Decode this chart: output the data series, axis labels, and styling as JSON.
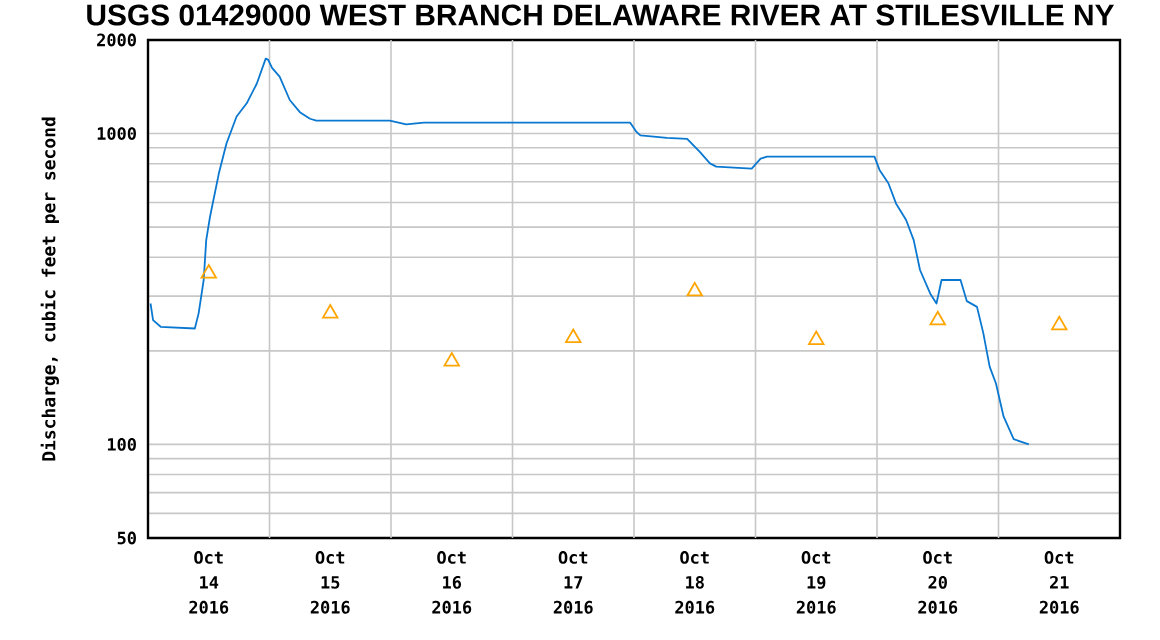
{
  "chart_data": {
    "type": "line",
    "title": "USGS 01429000 WEST BRANCH DELAWARE RIVER AT STILESVILLE NY",
    "ylabel": "Discharge, cubic feet per second",
    "log": "y",
    "grid": true,
    "xlim": [
      "2016-10-14",
      "2016-10-22"
    ],
    "xticks": [
      {
        "value": "2016-10-14T12:00",
        "label": "Oct 14 2016"
      },
      {
        "value": "2016-10-15T12:00",
        "label": "Oct 15 2016"
      },
      {
        "value": "2016-10-16T12:00",
        "label": "Oct 16 2016"
      },
      {
        "value": "2016-10-17T12:00",
        "label": "Oct 17 2016"
      },
      {
        "value": "2016-10-18T12:00",
        "label": "Oct 18 2016"
      },
      {
        "value": "2016-10-19T12:00",
        "label": "Oct 19 2016"
      },
      {
        "value": "2016-10-20T12:00",
        "label": "Oct 20 2016"
      },
      {
        "value": "2016-10-21T12:00",
        "label": "Oct 21 2016"
      },
      {
        "value": "2016-10-15",
        "label": null
      },
      {
        "value": "2016-10-16",
        "label": null
      },
      {
        "value": "2016-10-17",
        "label": null
      },
      {
        "value": "2016-10-18",
        "label": null
      },
      {
        "value": "2016-10-19",
        "label": null
      },
      {
        "value": "2016-10-20",
        "label": null
      },
      {
        "value": "2016-10-21",
        "label": null
      }
    ],
    "ylim": [
      50,
      2000
    ],
    "yticks": [
      50,
      {
        "value": 60,
        "label": null
      },
      {
        "value": 70,
        "label": null
      },
      {
        "value": 80,
        "label": null
      },
      {
        "value": 90,
        "label": null
      },
      100,
      {
        "value": 200,
        "label": null
      },
      {
        "value": 300,
        "label": null
      },
      {
        "value": 400,
        "label": null
      },
      {
        "value": 500,
        "label": null
      },
      {
        "value": 600,
        "label": null
      },
      {
        "value": 700,
        "label": null
      },
      {
        "value": 800,
        "label": null
      },
      {
        "value": 900,
        "label": null
      },
      1000,
      2000
    ],
    "series": [
      {
        "type": "line",
        "color": "#0a78d0",
        "x": [
          "2016-10-14T00:30",
          "2016-10-14T01:00",
          "2016-10-14T02:30",
          "2016-10-14T09:15",
          "2016-10-14T10:00",
          "2016-10-14T11:00",
          "2016-10-14T11:30",
          "2016-10-14T12:15",
          "2016-10-14T14:00",
          "2016-10-14T15:30",
          "2016-10-14T17:30",
          "2016-10-14T19:30",
          "2016-10-14T21:30",
          "2016-10-14T23:15",
          "2016-10-14T23:45",
          "2016-10-15T00:30",
          "2016-10-15T02:00",
          "2016-10-15T04:00",
          "2016-10-15T06:00",
          "2016-10-15T08:00",
          "2016-10-15T09:15",
          "2016-10-15T23:45",
          "2016-10-16T03:00",
          "2016-10-16T06:30",
          "2016-10-17T23:15",
          "2016-10-18T00:30",
          "2016-10-18T01:15",
          "2016-10-18T06:30",
          "2016-10-18T10:30",
          "2016-10-18T13:00",
          "2016-10-18T15:00",
          "2016-10-18T16:15",
          "2016-10-18T23:15",
          "2016-10-19T01:00",
          "2016-10-19T02:15",
          "2016-10-19T23:30",
          "2016-10-20T00:30",
          "2016-10-20T02:15",
          "2016-10-20T03:45",
          "2016-10-20T05:45",
          "2016-10-20T07:15",
          "2016-10-20T08:30",
          "2016-10-20T10:30",
          "2016-10-20T11:45",
          "2016-10-20T12:45",
          "2016-10-20T16:30",
          "2016-10-20T17:45",
          "2016-10-20T19:45",
          "2016-10-20T21:00",
          "2016-10-20T22:15",
          "2016-10-20T23:30",
          "2016-10-21T01:00",
          "2016-10-21T03:00",
          "2016-10-21T06:00"
        ],
        "values": [
          284,
          251,
          239,
          236,
          264,
          338,
          454,
          540,
          745,
          929,
          1135,
          1251,
          1449,
          1742,
          1726,
          1626,
          1525,
          1282,
          1172,
          1116,
          1101,
          1101,
          1070,
          1084,
          1084,
          1012,
          986,
          968,
          961,
          873,
          802,
          783,
          771,
          830,
          843,
          843,
          764,
          692,
          596,
          527,
          454,
          364,
          306,
          284,
          338,
          338,
          289,
          277,
          228,
          178,
          157,
          123,
          104,
          100
        ]
      },
      {
        "type": "scatter",
        "marker": "triangle",
        "color": "#ffa500",
        "x": [
          "2016-10-14T12:00",
          "2016-10-15T12:00",
          "2016-10-16T12:00",
          "2016-10-17T12:00",
          "2016-10-18T12:00",
          "2016-10-19T12:00",
          "2016-10-20T12:00",
          "2016-10-21T12:00"
        ],
        "values": [
          355,
          264,
          185,
          220,
          311,
          217,
          251,
          242
        ]
      }
    ]
  }
}
